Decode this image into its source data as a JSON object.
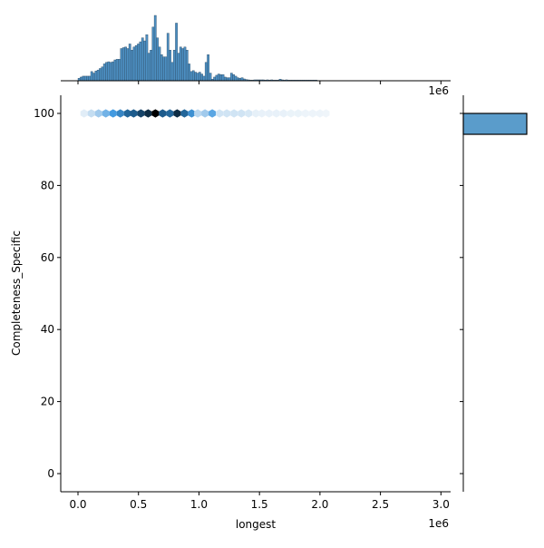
{
  "chart_data": {
    "type": "hexbin-jointplot",
    "xlabel": "longest",
    "ylabel": "Completeness_Specific",
    "x_offset_label": "1e6",
    "top_offset_label": "1e6",
    "xlim": [
      -0.1425,
      3.08
    ],
    "ylim": [
      -5.04,
      105.04
    ],
    "x_ticks": [
      "0.0",
      "0.5",
      "1.0",
      "1.5",
      "2.0",
      "2.5",
      "3.0"
    ],
    "y_ticks": [
      "0",
      "20",
      "40",
      "60",
      "80",
      "100"
    ],
    "grid": false,
    "color": "#4c92c6",
    "hexbin": {
      "y": 100,
      "x_centers": [
        0.05,
        0.11,
        0.17,
        0.23,
        0.29,
        0.35,
        0.41,
        0.46,
        0.52,
        0.58,
        0.64,
        0.7,
        0.76,
        0.82,
        0.88,
        0.94,
        0.99,
        1.05,
        1.11,
        1.17,
        1.23,
        1.29,
        1.35,
        1.41,
        1.47,
        1.52,
        1.58,
        1.64,
        1.7,
        1.76,
        1.82,
        1.88,
        1.94,
        2.0,
        2.05
      ],
      "density": [
        0.08,
        0.2,
        0.3,
        0.4,
        0.5,
        0.6,
        0.75,
        0.8,
        0.85,
        0.9,
        1.0,
        0.8,
        0.75,
        0.9,
        0.75,
        0.55,
        0.25,
        0.3,
        0.45,
        0.15,
        0.15,
        0.15,
        0.15,
        0.12,
        0.06,
        0.05,
        0.05,
        0.05,
        0.05,
        0.04,
        0.04,
        0.03,
        0.03,
        0.03,
        0.02
      ]
    },
    "x_marginal_hist": {
      "bin_width": 0.0175,
      "bin_starts": [
        0.0,
        0.0175,
        0.035,
        0.0525,
        0.07,
        0.0875,
        0.105,
        0.1225,
        0.14,
        0.1575,
        0.175,
        0.1925,
        0.21,
        0.2275,
        0.245,
        0.2625,
        0.28,
        0.2975,
        0.315,
        0.3325,
        0.35,
        0.3675,
        0.385,
        0.4025,
        0.42,
        0.4375,
        0.455,
        0.4725,
        0.49,
        0.5075,
        0.525,
        0.5425,
        0.56,
        0.5775,
        0.595,
        0.6125,
        0.63,
        0.6475,
        0.665,
        0.6825,
        0.7,
        0.7175,
        0.735,
        0.7525,
        0.77,
        0.7875,
        0.805,
        0.8225,
        0.84,
        0.8575,
        0.875,
        0.8925,
        0.91,
        0.9275,
        0.945,
        0.9625,
        0.98,
        0.9975,
        1.015,
        1.0325,
        1.05,
        1.0675,
        1.085,
        1.1025,
        1.12,
        1.1375,
        1.155,
        1.1725,
        1.19,
        1.2075,
        1.225,
        1.2425,
        1.26,
        1.2775,
        1.295,
        1.3125,
        1.33,
        1.3475,
        1.365,
        1.3825,
        1.4,
        1.4175,
        1.435,
        1.4525,
        1.47,
        1.4875,
        1.505,
        1.5225,
        1.54,
        1.5575,
        1.575,
        1.5925,
        1.61,
        1.6275,
        1.645,
        1.6625,
        1.68,
        1.6975,
        1.715,
        1.7325,
        1.75,
        1.7675,
        1.785,
        1.8025,
        1.82,
        1.8375,
        1.855,
        1.8725,
        1.89,
        1.9075,
        1.925,
        1.9425,
        1.96
      ],
      "counts": [
        8,
        12,
        15,
        15,
        15,
        15,
        30,
        25,
        32,
        35,
        40,
        45,
        55,
        60,
        62,
        60,
        62,
        68,
        70,
        70,
        105,
        108,
        110,
        105,
        120,
        100,
        110,
        115,
        120,
        127,
        140,
        130,
        150,
        90,
        100,
        175,
        213,
        140,
        110,
        85,
        78,
        78,
        155,
        100,
        60,
        100,
        188,
        90,
        110,
        105,
        110,
        100,
        55,
        30,
        33,
        28,
        25,
        28,
        22,
        15,
        60,
        85,
        25,
        5,
        12,
        18,
        22,
        20,
        20,
        12,
        10,
        10,
        25,
        20,
        15,
        10,
        8,
        10,
        6,
        4,
        3,
        2,
        2,
        3,
        3,
        3,
        3,
        3,
        2,
        3,
        2,
        3,
        2,
        2,
        2,
        5,
        3,
        2,
        3,
        2,
        2,
        2,
        2,
        2,
        2,
        2,
        2,
        2,
        2,
        2,
        2,
        2,
        2,
        3,
        2
      ]
    },
    "y_marginal_hist": {
      "bins": [
        [
          94.2,
          100
        ]
      ],
      "counts": [
        1
      ]
    }
  }
}
